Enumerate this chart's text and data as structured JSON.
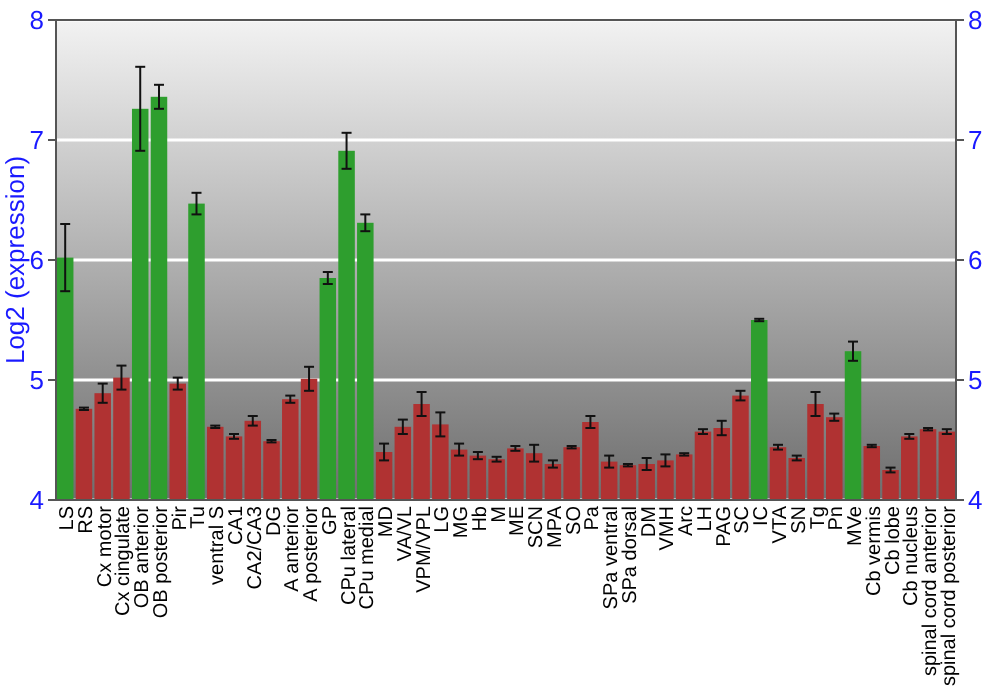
{
  "chart_data": {
    "type": "bar",
    "ylabel": "Log2 (expression)",
    "categories": [
      "LS",
      "RS",
      "Cx motor",
      "Cx cingulate",
      "OB anterior",
      "OB posterior",
      "Pir",
      "Tu",
      "ventral S",
      "CA1",
      "CA2/CA3",
      "DG",
      "A anterior",
      "A posterior",
      "GP",
      "CPu lateral",
      "CPu medial",
      "MD",
      "VA/VL",
      "VPM/VPL",
      "LG",
      "MG",
      "Hb",
      "M",
      "ME",
      "SCN",
      "MPA",
      "SO",
      "Pa",
      "SPa ventral",
      "SPa dorsal",
      "DM",
      "VMH",
      "Arc",
      "LH",
      "PAG",
      "SC",
      "IC",
      "VTA",
      "SN",
      "Tg",
      "Pn",
      "MVe",
      "Cb vermis",
      "Cb lobe",
      "Cb nucleus",
      "spinal cord anterior",
      "spinal cord posterior"
    ],
    "values": [
      6.02,
      4.76,
      4.89,
      5.02,
      7.26,
      7.36,
      4.97,
      6.47,
      4.61,
      4.53,
      4.66,
      4.49,
      4.84,
      5.01,
      5.85,
      6.91,
      6.31,
      4.4,
      4.61,
      4.8,
      4.63,
      4.42,
      4.37,
      4.34,
      4.43,
      4.39,
      4.3,
      4.44,
      4.65,
      4.32,
      4.29,
      4.3,
      4.33,
      4.38,
      4.57,
      4.6,
      4.87,
      5.5,
      4.44,
      4.35,
      4.8,
      4.69,
      5.24,
      4.45,
      4.25,
      4.53,
      4.59,
      4.57
    ],
    "errors": [
      0.28,
      0.01,
      0.08,
      0.1,
      0.35,
      0.1,
      0.05,
      0.09,
      0.01,
      0.02,
      0.04,
      0.01,
      0.03,
      0.1,
      0.05,
      0.15,
      0.07,
      0.07,
      0.06,
      0.1,
      0.1,
      0.05,
      0.03,
      0.02,
      0.02,
      0.07,
      0.03,
      0.01,
      0.05,
      0.05,
      0.01,
      0.05,
      0.05,
      0.01,
      0.02,
      0.06,
      0.04,
      0.01,
      0.02,
      0.02,
      0.1,
      0.03,
      0.08,
      0.01,
      0.02,
      0.02,
      0.01,
      0.02
    ],
    "colors": [
      "#2e9e2e",
      "#b03232",
      "#b03232",
      "#b03232",
      "#2e9e2e",
      "#2e9e2e",
      "#b03232",
      "#2e9e2e",
      "#b03232",
      "#b03232",
      "#b03232",
      "#b03232",
      "#b03232",
      "#b03232",
      "#2e9e2e",
      "#2e9e2e",
      "#2e9e2e",
      "#b03232",
      "#b03232",
      "#b03232",
      "#b03232",
      "#b03232",
      "#b03232",
      "#b03232",
      "#b03232",
      "#b03232",
      "#b03232",
      "#b03232",
      "#b03232",
      "#b03232",
      "#b03232",
      "#b03232",
      "#b03232",
      "#b03232",
      "#b03232",
      "#b03232",
      "#b03232",
      "#2e9e2e",
      "#b03232",
      "#b03232",
      "#b03232",
      "#b03232",
      "#2e9e2e",
      "#b03232",
      "#b03232",
      "#b03232",
      "#b03232",
      "#b03232"
    ],
    "ylim": [
      4,
      8
    ],
    "yticks": [
      4,
      5,
      6,
      7,
      8
    ],
    "y2lim": [
      4,
      8
    ],
    "y2ticks": [
      4,
      5,
      6,
      7,
      8
    ],
    "grid": "y"
  }
}
